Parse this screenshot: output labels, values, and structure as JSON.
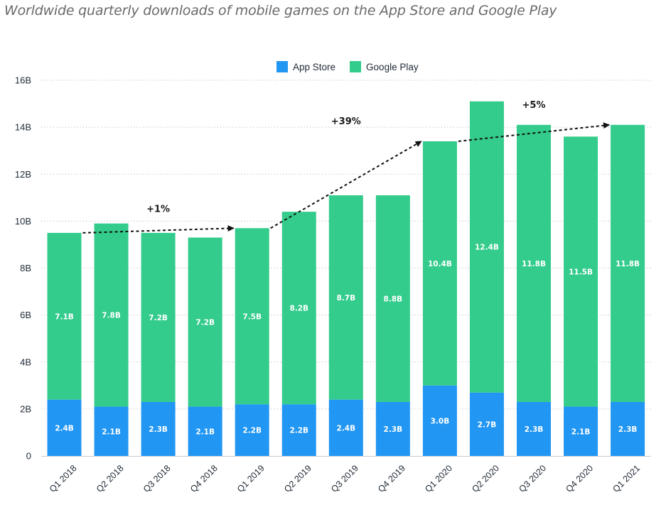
{
  "chart_data": {
    "type": "bar",
    "stacked": true,
    "title": "Worldwide quarterly downloads of mobile games on the App Store and Google Play",
    "categories": [
      "Q1 2018",
      "Q2 2018",
      "Q3 2018",
      "Q4 2018",
      "Q1 2019",
      "Q2 2019",
      "Q3 2019",
      "Q4 2019",
      "Q1 2020",
      "Q2 2020",
      "Q3 2020",
      "Q4 2020",
      "Q1 2021"
    ],
    "series": [
      {
        "name": "App Store",
        "color": "#2196f3",
        "values": [
          2.4,
          2.1,
          2.3,
          2.1,
          2.2,
          2.2,
          2.4,
          2.3,
          3.0,
          2.7,
          2.3,
          2.1,
          2.3
        ],
        "labels": [
          "2.4B",
          "2.1B",
          "2.3B",
          "2.1B",
          "2.2B",
          "2.2B",
          "2.4B",
          "2.3B",
          "3.0B",
          "2.7B",
          "2.3B",
          "2.1B",
          "2.3B"
        ]
      },
      {
        "name": "Google Play",
        "color": "#33cc8c",
        "values": [
          7.1,
          7.8,
          7.2,
          7.2,
          7.5,
          8.2,
          8.7,
          8.8,
          10.4,
          12.4,
          11.8,
          11.5,
          11.8
        ],
        "labels": [
          "7.1B",
          "7.8B",
          "7.2B",
          "7.2B",
          "7.5B",
          "8.2B",
          "8.7B",
          "8.8B",
          "10.4B",
          "12.4B",
          "11.8B",
          "11.5B",
          "11.8B"
        ]
      }
    ],
    "y_ticks": [
      "0",
      "2B",
      "4B",
      "6B",
      "8B",
      "10B",
      "12B",
      "14B",
      "16B"
    ],
    "ylim": [
      0,
      16
    ],
    "grid": true,
    "legend_position": "top-center",
    "annotations": [
      {
        "text": "+1%",
        "from": "Q1 2018",
        "to": "Q1 2019"
      },
      {
        "text": "+39%",
        "from": "Q1 2019",
        "to": "Q1 2020"
      },
      {
        "text": "+5%",
        "from": "Q1 2020",
        "to": "Q1 2021"
      }
    ]
  }
}
